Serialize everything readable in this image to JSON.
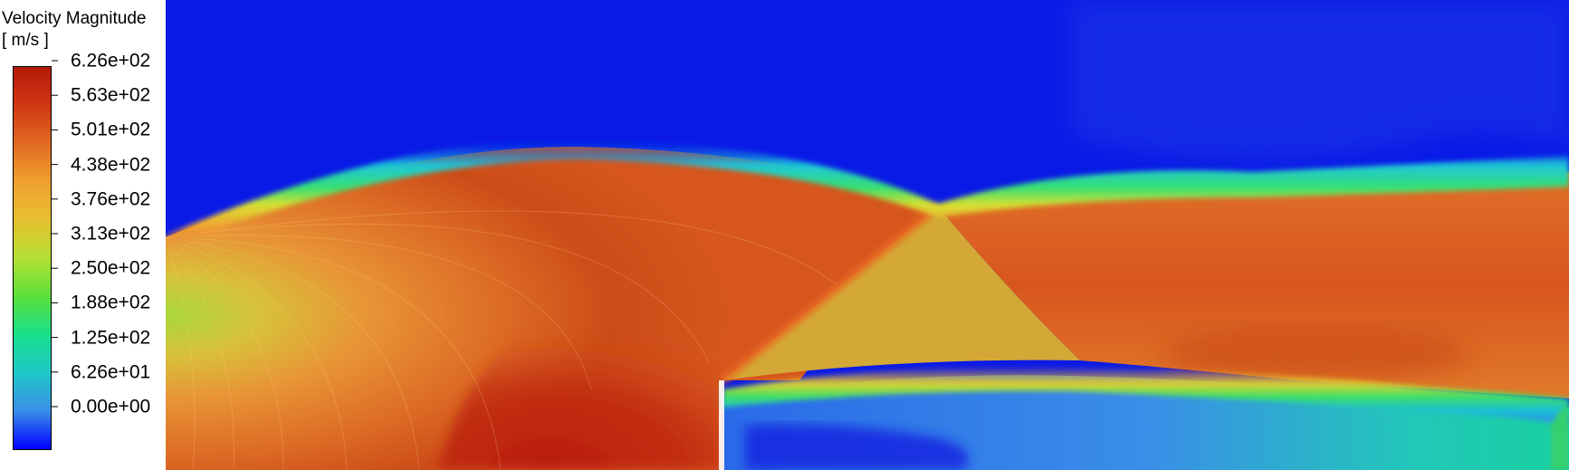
{
  "legend": {
    "title": "Velocity Magnitude",
    "units": "[ m/s ]",
    "ticks": [
      "6.26e+02",
      "5.63e+02",
      "5.01e+02",
      "4.38e+02",
      "3.76e+02",
      "3.13e+02",
      "2.50e+02",
      "1.88e+02",
      "1.25e+02",
      "6.26e+01",
      "0.00e+00"
    ],
    "colormap": [
      "#0000ff",
      "#3a8fe8",
      "#1ec8c8",
      "#18e08c",
      "#5ce03a",
      "#b4e034",
      "#e8c030",
      "#f0a030",
      "#e06a20",
      "#d03812",
      "#b41a0a"
    ]
  },
  "chart_data": {
    "type": "heatmap",
    "title": "Velocity Magnitude",
    "units": "[ m/s ]",
    "colorbar_range": [
      0.0,
      626.0
    ],
    "colorbar_ticks": [
      626.0,
      563.0,
      501.0,
      438.0,
      376.0,
      313.0,
      250.0,
      188.0,
      125.0,
      62.6,
      0.0
    ],
    "colors": {
      "ambient": "#0a1ae6",
      "jet_core": "#b81b0c",
      "jet_main": "#d9561e",
      "inlet": "#a8d83a",
      "post_shock": "#d4a836",
      "recirculation": "#3a7ee8",
      "shear_layer": "#18e0a0"
    }
  }
}
